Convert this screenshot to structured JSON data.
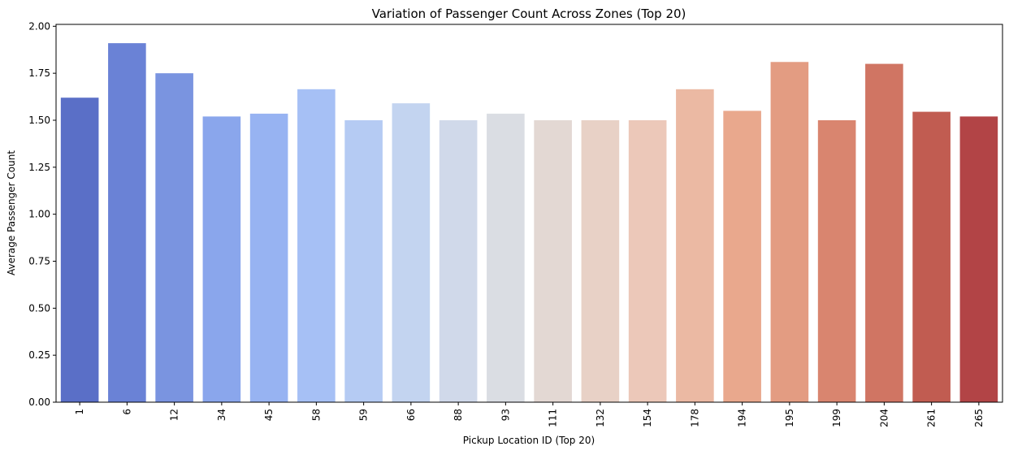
{
  "chart_data": {
    "type": "bar",
    "title": "Variation of Passenger Count Across Zones (Top 20)",
    "xlabel": "Pickup Location ID (Top 20)",
    "ylabel": "Average Passenger Count",
    "categories": [
      "1",
      "6",
      "12",
      "34",
      "45",
      "58",
      "59",
      "66",
      "88",
      "93",
      "111",
      "132",
      "154",
      "178",
      "194",
      "195",
      "199",
      "204",
      "261",
      "265"
    ],
    "values": [
      1.62,
      1.91,
      1.75,
      1.52,
      1.535,
      1.665,
      1.5,
      1.59,
      1.5,
      1.535,
      1.5,
      1.5,
      1.5,
      1.665,
      1.55,
      1.81,
      1.5,
      1.8,
      1.545,
      1.52
    ],
    "ylim": [
      0,
      2.01
    ],
    "yticks": [
      "0.00",
      "0.25",
      "0.50",
      "0.75",
      "1.00",
      "1.25",
      "1.50",
      "1.75",
      "2.00"
    ],
    "grid": false,
    "colors": [
      "#5a6fc7",
      "#6a82d6",
      "#7a94e0",
      "#8aa6ec",
      "#97b3f2",
      "#a6c0f5",
      "#b5cbf3",
      "#c3d4f0",
      "#d0d9ea",
      "#dadde3",
      "#e3d8d3",
      "#e8d1c6",
      "#ecc8b9",
      "#ebb9a3",
      "#e9a88d",
      "#e39c82",
      "#d9856f",
      "#d07563",
      "#c15c51",
      "#b24446"
    ]
  }
}
